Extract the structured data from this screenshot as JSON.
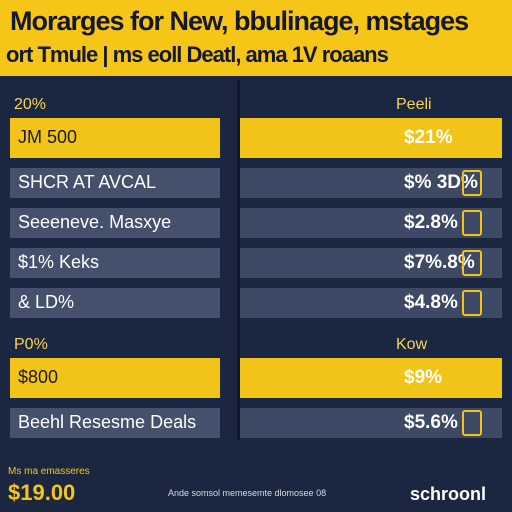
{
  "header": {
    "title": "Morarges for New, bbulinage, mstages",
    "subtitle": "ort Tmule | ms eoll Deatl, ama 1V roaans"
  },
  "sections": [
    {
      "left": "20%",
      "right": "Peeli",
      "rows": [
        {
          "label": "JM 500",
          "value": "$21%",
          "highlight": true
        },
        {
          "label": "SHCR AT AVCAL",
          "value": "$% 3D%",
          "highlight": false
        },
        {
          "label": "Seeeneve. Masxye",
          "value": "$2.8%",
          "highlight": false
        },
        {
          "label": "$1% Keks",
          "value": "$7%.8%",
          "highlight": false
        },
        {
          "label": "& LD%",
          "value": "$4.8%",
          "highlight": false
        }
      ]
    },
    {
      "left": "P0%",
      "right": "Kow",
      "rows": [
        {
          "label": "$800",
          "value": "$9%",
          "highlight": true
        },
        {
          "label": "Beehl Resesme Deals",
          "value": "$5.6%",
          "highlight": false
        }
      ]
    }
  ],
  "footer": {
    "small": "Ms ma emasseres",
    "big": "$19.00",
    "center": "Ande somsol memesemte dlomosee 08",
    "right": "schroonl"
  }
}
